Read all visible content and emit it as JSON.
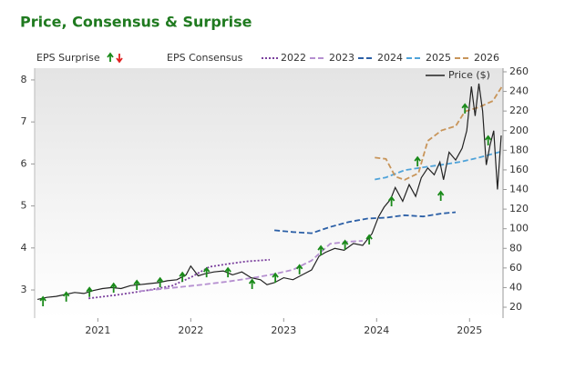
{
  "chart_data": {
    "type": "line",
    "title": "Price, Consensus & Surprise",
    "xlim": [
      2020.32,
      2025.36
    ],
    "xticks": [
      2021,
      2022,
      2023,
      2024,
      2025
    ],
    "ylim": [
      2.33,
      8.28
    ],
    "yticks": [
      3,
      4,
      5,
      6,
      7,
      8
    ],
    "y2lim": [
      8.9,
      263.7
    ],
    "y2ticks": [
      20,
      40,
      60,
      80,
      100,
      120,
      140,
      160,
      180,
      200,
      220,
      240,
      260
    ],
    "surprise": {
      "name": "EPS Surprise",
      "color": "#1a8a1a",
      "x": [
        2020.41,
        2020.66,
        2020.91,
        2021.17,
        2021.42,
        2021.67,
        2021.91,
        2022.17,
        2022.4,
        2022.66,
        2022.91,
        2023.17,
        2023.4,
        2023.66,
        2023.92,
        2024.16,
        2024.44,
        2024.69,
        2024.95,
        2025.2
      ],
      "values": [
        2.72,
        2.83,
        2.94,
        3.04,
        3.11,
        3.17,
        3.3,
        3.41,
        3.41,
        3.13,
        3.28,
        3.48,
        3.93,
        4.06,
        4.19,
        5.1,
        6.05,
        5.23,
        7.31,
        6.55
      ]
    },
    "consensus_label": "EPS Consensus",
    "series": [
      {
        "name": "2022",
        "color": "#7a3f9d",
        "dash": "dotted",
        "axis": "y",
        "x": [
          2020.9,
          2021.2,
          2021.5,
          2021.8,
          2022.0,
          2022.2,
          2022.4,
          2022.6,
          2022.85
        ],
        "values": [
          2.8,
          2.88,
          2.98,
          3.1,
          3.3,
          3.55,
          3.62,
          3.68,
          3.72
        ]
      },
      {
        "name": "2023",
        "color": "#b58fd0",
        "dash": "dashed",
        "axis": "y",
        "x": [
          2021.45,
          2021.8,
          2022.1,
          2022.4,
          2022.7,
          2022.9,
          2023.1,
          2023.3,
          2023.5,
          2023.7,
          2023.85
        ],
        "values": [
          2.97,
          3.05,
          3.12,
          3.2,
          3.3,
          3.38,
          3.48,
          3.7,
          4.1,
          4.15,
          4.17
        ]
      },
      {
        "name": "2024",
        "color": "#2b5fa6",
        "dash": "dashed",
        "axis": "y",
        "x": [
          2022.9,
          2023.1,
          2023.3,
          2023.5,
          2023.7,
          2023.9,
          2024.1,
          2024.3,
          2024.5,
          2024.7,
          2024.85
        ],
        "values": [
          4.42,
          4.38,
          4.35,
          4.5,
          4.62,
          4.7,
          4.72,
          4.78,
          4.75,
          4.82,
          4.85
        ]
      },
      {
        "name": "2025",
        "color": "#4fa3d9",
        "dash": "dashed",
        "axis": "y",
        "x": [
          2023.98,
          2024.1,
          2024.3,
          2024.5,
          2024.7,
          2024.9,
          2025.1,
          2025.35
        ],
        "values": [
          5.63,
          5.68,
          5.85,
          5.92,
          5.98,
          6.05,
          6.15,
          6.3
        ]
      },
      {
        "name": "2026",
        "color": "#c8955a",
        "dash": "dashed",
        "axis": "y",
        "x": [
          2023.98,
          2024.1,
          2024.2,
          2024.3,
          2024.45,
          2024.55,
          2024.7,
          2024.85,
          2024.95,
          2025.1,
          2025.25,
          2025.35
        ],
        "values": [
          6.15,
          6.12,
          5.7,
          5.62,
          5.78,
          6.55,
          6.8,
          6.9,
          7.25,
          7.35,
          7.5,
          7.85
        ]
      },
      {
        "name": "Price ($)",
        "color": "#222222",
        "dash": "solid",
        "axis": "y2",
        "x": [
          2020.35,
          2020.45,
          2020.55,
          2020.65,
          2020.75,
          2020.85,
          2020.95,
          2021.05,
          2021.15,
          2021.25,
          2021.35,
          2021.45,
          2021.55,
          2021.65,
          2021.75,
          2021.85,
          2021.95,
          2022.0,
          2022.08,
          2022.15,
          2022.25,
          2022.35,
          2022.45,
          2022.55,
          2022.65,
          2022.75,
          2022.82,
          2022.9,
          2023.0,
          2023.1,
          2023.2,
          2023.3,
          2023.38,
          2023.45,
          2023.55,
          2023.65,
          2023.75,
          2023.85,
          2023.95,
          2024.02,
          2024.08,
          2024.15,
          2024.2,
          2024.28,
          2024.35,
          2024.42,
          2024.48,
          2024.55,
          2024.62,
          2024.68,
          2024.72,
          2024.78,
          2024.85,
          2024.92,
          2024.97,
          2025.02,
          2025.06,
          2025.1,
          2025.14,
          2025.18,
          2025.22,
          2025.26,
          2025.3,
          2025.34
        ],
        "values": [
          28,
          30,
          31,
          33,
          35,
          34,
          37,
          39,
          40,
          39,
          42,
          43,
          44,
          45,
          47,
          48,
          53,
          62,
          52,
          54,
          56,
          57,
          53,
          56,
          50,
          48,
          43,
          45,
          50,
          48,
          53,
          58,
          72,
          76,
          80,
          78,
          85,
          83,
          95,
          112,
          122,
          130,
          142,
          128,
          145,
          133,
          152,
          162,
          155,
          168,
          150,
          178,
          170,
          182,
          200,
          245,
          215,
          248,
          220,
          165,
          185,
          200,
          140,
          195
        ]
      }
    ]
  }
}
